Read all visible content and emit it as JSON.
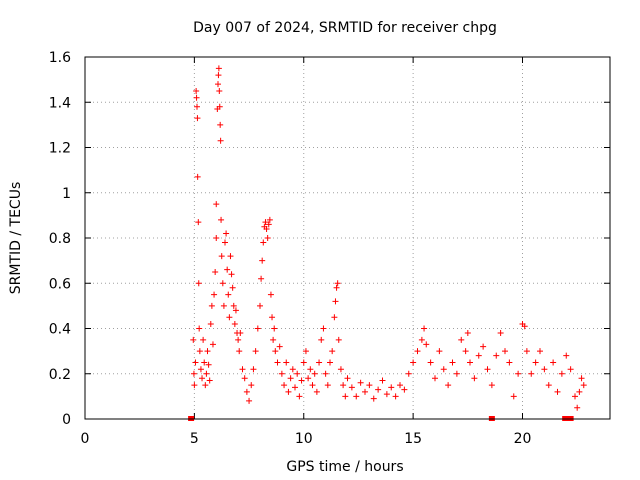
{
  "chart_data": {
    "type": "scatter",
    "title": "Day 007 of 2024, SRMTID for receiver chpg",
    "xlabel": "GPS time / hours",
    "ylabel": "SRMTID / TECUs",
    "xlim": [
      0,
      24
    ],
    "ylim": [
      0,
      1.6
    ],
    "xticks": [
      0,
      5,
      10,
      15,
      20
    ],
    "xtick_labels": [
      "0",
      "5",
      "10",
      "15",
      "20"
    ],
    "yticks": [
      0,
      0.2,
      0.4,
      0.6,
      0.8,
      1,
      1.2,
      1.4,
      1.6
    ],
    "ytick_labels": [
      "0",
      "0.2",
      "0.4",
      "0.6",
      "0.8",
      "1",
      "1.2",
      "1.4",
      "1.6"
    ],
    "grid": true,
    "marker": "plus",
    "color": "#ff0000",
    "series": [
      {
        "name": "SRMTID",
        "points": [
          [
            4.85,
            0.0
          ],
          [
            18.6,
            0.0
          ],
          [
            21.95,
            0.0
          ],
          [
            22.2,
            0.0
          ],
          [
            4.95,
            0.35
          ],
          [
            4.98,
            0.2
          ],
          [
            5.0,
            0.15
          ],
          [
            5.05,
            0.25
          ],
          [
            5.08,
            1.45
          ],
          [
            5.1,
            1.42
          ],
          [
            5.12,
            1.38
          ],
          [
            5.14,
            1.33
          ],
          [
            5.15,
            1.07
          ],
          [
            5.18,
            0.87
          ],
          [
            5.2,
            0.6
          ],
          [
            5.22,
            0.4
          ],
          [
            5.25,
            0.3
          ],
          [
            5.3,
            0.22
          ],
          [
            5.35,
            0.18
          ],
          [
            5.4,
            0.35
          ],
          [
            5.45,
            0.25
          ],
          [
            5.5,
            0.15
          ],
          [
            5.55,
            0.2
          ],
          [
            5.6,
            0.3
          ],
          [
            5.65,
            0.24
          ],
          [
            5.7,
            0.17
          ],
          [
            5.75,
            0.42
          ],
          [
            5.8,
            0.5
          ],
          [
            5.85,
            0.33
          ],
          [
            5.9,
            0.55
          ],
          [
            5.95,
            0.65
          ],
          [
            6.0,
            0.8
          ],
          [
            6.0,
            0.95
          ],
          [
            6.05,
            1.37
          ],
          [
            6.08,
            1.48
          ],
          [
            6.1,
            1.52
          ],
          [
            6.12,
            1.55
          ],
          [
            6.14,
            1.45
          ],
          [
            6.16,
            1.38
          ],
          [
            6.18,
            1.3
          ],
          [
            6.2,
            1.23
          ],
          [
            6.22,
            0.88
          ],
          [
            6.25,
            0.72
          ],
          [
            6.3,
            0.6
          ],
          [
            6.35,
            0.5
          ],
          [
            6.4,
            0.78
          ],
          [
            6.45,
            0.82
          ],
          [
            6.5,
            0.66
          ],
          [
            6.55,
            0.55
          ],
          [
            6.6,
            0.45
          ],
          [
            6.65,
            0.72
          ],
          [
            6.7,
            0.64
          ],
          [
            6.75,
            0.58
          ],
          [
            6.8,
            0.5
          ],
          [
            6.85,
            0.42
          ],
          [
            6.9,
            0.48
          ],
          [
            6.95,
            0.38
          ],
          [
            7.0,
            0.35
          ],
          [
            7.05,
            0.3
          ],
          [
            7.1,
            0.38
          ],
          [
            7.2,
            0.22
          ],
          [
            7.3,
            0.18
          ],
          [
            7.4,
            0.12
          ],
          [
            7.5,
            0.08
          ],
          [
            7.6,
            0.15
          ],
          [
            7.7,
            0.22
          ],
          [
            7.8,
            0.3
          ],
          [
            7.9,
            0.4
          ],
          [
            8.0,
            0.5
          ],
          [
            8.05,
            0.62
          ],
          [
            8.1,
            0.7
          ],
          [
            8.15,
            0.78
          ],
          [
            8.2,
            0.85
          ],
          [
            8.25,
            0.87
          ],
          [
            8.3,
            0.84
          ],
          [
            8.35,
            0.8
          ],
          [
            8.4,
            0.86
          ],
          [
            8.45,
            0.88
          ],
          [
            8.5,
            0.55
          ],
          [
            8.55,
            0.45
          ],
          [
            8.6,
            0.35
          ],
          [
            8.65,
            0.4
          ],
          [
            8.7,
            0.3
          ],
          [
            8.8,
            0.25
          ],
          [
            8.9,
            0.32
          ],
          [
            9.0,
            0.2
          ],
          [
            9.1,
            0.15
          ],
          [
            9.2,
            0.25
          ],
          [
            9.3,
            0.12
          ],
          [
            9.4,
            0.18
          ],
          [
            9.5,
            0.22
          ],
          [
            9.6,
            0.14
          ],
          [
            9.7,
            0.2
          ],
          [
            9.8,
            0.1
          ],
          [
            9.9,
            0.17
          ],
          [
            10.0,
            0.25
          ],
          [
            10.1,
            0.3
          ],
          [
            10.2,
            0.18
          ],
          [
            10.3,
            0.22
          ],
          [
            10.4,
            0.15
          ],
          [
            10.5,
            0.2
          ],
          [
            10.6,
            0.12
          ],
          [
            10.7,
            0.25
          ],
          [
            10.8,
            0.35
          ],
          [
            10.9,
            0.4
          ],
          [
            11.0,
            0.2
          ],
          [
            11.1,
            0.15
          ],
          [
            11.2,
            0.25
          ],
          [
            11.3,
            0.3
          ],
          [
            11.4,
            0.45
          ],
          [
            11.45,
            0.52
          ],
          [
            11.5,
            0.58
          ],
          [
            11.55,
            0.6
          ],
          [
            11.6,
            0.35
          ],
          [
            11.7,
            0.22
          ],
          [
            11.8,
            0.15
          ],
          [
            11.9,
            0.1
          ],
          [
            12.0,
            0.18
          ],
          [
            12.2,
            0.14
          ],
          [
            12.4,
            0.1
          ],
          [
            12.6,
            0.16
          ],
          [
            12.8,
            0.12
          ],
          [
            13.0,
            0.15
          ],
          [
            13.2,
            0.09
          ],
          [
            13.4,
            0.13
          ],
          [
            13.6,
            0.17
          ],
          [
            13.8,
            0.11
          ],
          [
            14.0,
            0.14
          ],
          [
            14.2,
            0.1
          ],
          [
            14.4,
            0.15
          ],
          [
            14.6,
            0.13
          ],
          [
            14.8,
            0.2
          ],
          [
            15.0,
            0.25
          ],
          [
            15.2,
            0.3
          ],
          [
            15.4,
            0.35
          ],
          [
            15.5,
            0.4
          ],
          [
            15.6,
            0.33
          ],
          [
            15.8,
            0.25
          ],
          [
            16.0,
            0.18
          ],
          [
            16.2,
            0.3
          ],
          [
            16.4,
            0.22
          ],
          [
            16.6,
            0.15
          ],
          [
            16.8,
            0.25
          ],
          [
            17.0,
            0.2
          ],
          [
            17.2,
            0.35
          ],
          [
            17.4,
            0.3
          ],
          [
            17.5,
            0.38
          ],
          [
            17.6,
            0.25
          ],
          [
            17.8,
            0.18
          ],
          [
            18.0,
            0.28
          ],
          [
            18.2,
            0.32
          ],
          [
            18.4,
            0.22
          ],
          [
            18.6,
            0.15
          ],
          [
            18.8,
            0.28
          ],
          [
            19.0,
            0.38
          ],
          [
            19.2,
            0.3
          ],
          [
            19.4,
            0.25
          ],
          [
            19.6,
            0.1
          ],
          [
            19.8,
            0.2
          ],
          [
            20.0,
            0.42
          ],
          [
            20.1,
            0.41
          ],
          [
            20.2,
            0.3
          ],
          [
            20.4,
            0.2
          ],
          [
            20.6,
            0.25
          ],
          [
            20.8,
            0.3
          ],
          [
            21.0,
            0.22
          ],
          [
            21.2,
            0.15
          ],
          [
            21.4,
            0.25
          ],
          [
            21.6,
            0.12
          ],
          [
            21.8,
            0.2
          ],
          [
            22.0,
            0.28
          ],
          [
            22.2,
            0.22
          ],
          [
            22.4,
            0.1
          ],
          [
            22.5,
            0.05
          ],
          [
            22.6,
            0.12
          ],
          [
            22.7,
            0.18
          ],
          [
            22.8,
            0.15
          ]
        ]
      }
    ]
  }
}
